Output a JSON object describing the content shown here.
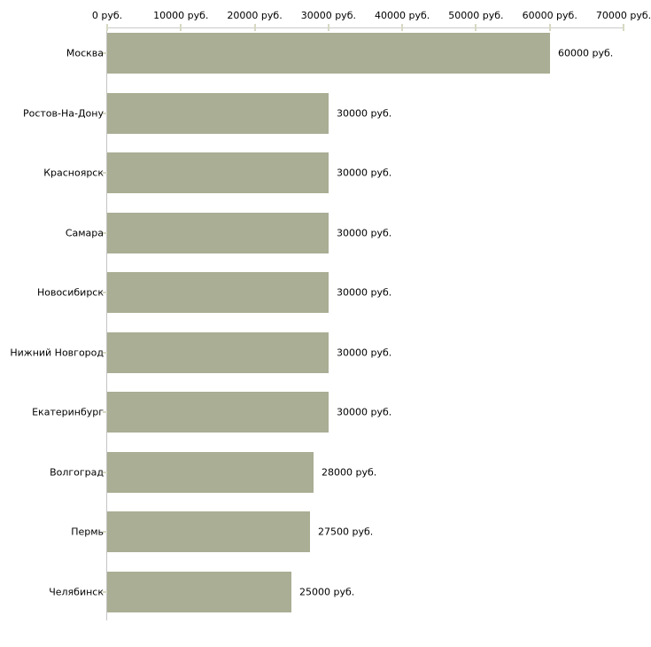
{
  "chart_data": {
    "type": "bar",
    "orientation": "horizontal",
    "title": "",
    "categories": [
      "Москва",
      "Ростов-На-Дону",
      "Красноярск",
      "Самара",
      "Новосибирск",
      "Нижний Новгород",
      "Екатеринбург",
      "Волгоград",
      "Пермь",
      "Челябинск"
    ],
    "values": [
      60000,
      30000,
      30000,
      30000,
      30000,
      30000,
      30000,
      28000,
      27500,
      25000
    ],
    "value_labels": [
      "60000 руб.",
      "30000 руб.",
      "30000 руб.",
      "30000 руб.",
      "30000 руб.",
      "30000 руб.",
      "30000 руб.",
      "28000 руб.",
      "27500 руб.",
      "25000 руб."
    ],
    "x_axis": {
      "position": "top",
      "range": [
        0,
        70000
      ],
      "ticks": [
        0,
        10000,
        20000,
        30000,
        40000,
        50000,
        60000,
        70000
      ],
      "tick_labels": [
        "0 руб.",
        "10000 руб.",
        "20000 руб.",
        "30000 руб.",
        "40000 руб.",
        "50000 руб.",
        "60000 руб.",
        "70000 руб."
      ]
    },
    "legend": null,
    "grid": false,
    "colors": {
      "bar": "#a9ae94",
      "axis_line_h": "#c9c9c9",
      "axis_line_v": "#c4c4c4",
      "tick": "#d7d9c3",
      "text": "#000000",
      "background": "#ffffff"
    }
  }
}
